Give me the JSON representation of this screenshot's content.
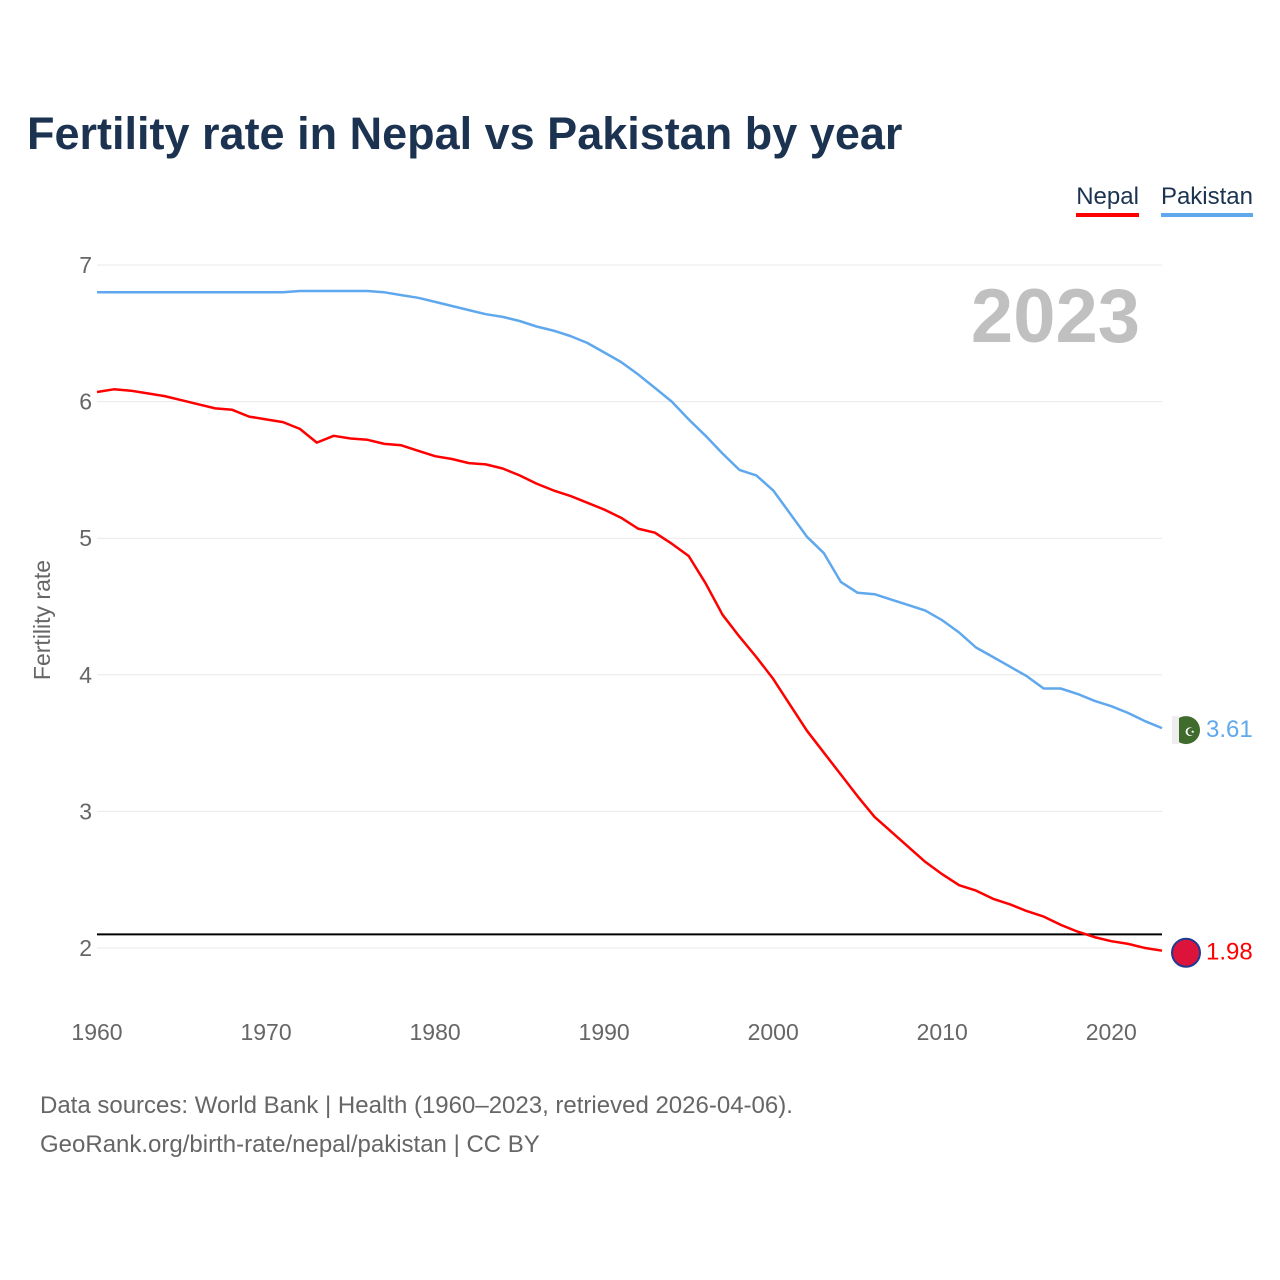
{
  "chart_data": {
    "type": "line",
    "title": "Fertility rate in Nepal vs Pakistan by year",
    "xlabel": "",
    "ylabel": "Fertility rate",
    "xlim": [
      1960,
      2023
    ],
    "ylim": [
      2,
      7
    ],
    "x_ticks": [
      1960,
      1970,
      1980,
      1990,
      2000,
      2010,
      2020
    ],
    "y_ticks": [
      2,
      3,
      4,
      5,
      6,
      7
    ],
    "grid": true,
    "legend_position": "top-right",
    "year_label": "2023",
    "reference_line": 2.1,
    "x": [
      1960,
      1961,
      1962,
      1963,
      1964,
      1965,
      1966,
      1967,
      1968,
      1969,
      1970,
      1971,
      1972,
      1973,
      1974,
      1975,
      1976,
      1977,
      1978,
      1979,
      1980,
      1981,
      1982,
      1983,
      1984,
      1985,
      1986,
      1987,
      1988,
      1989,
      1990,
      1991,
      1992,
      1993,
      1994,
      1995,
      1996,
      1997,
      1998,
      1999,
      2000,
      2001,
      2002,
      2003,
      2004,
      2005,
      2006,
      2007,
      2008,
      2009,
      2010,
      2011,
      2012,
      2013,
      2014,
      2015,
      2016,
      2017,
      2018,
      2019,
      2020,
      2021,
      2022,
      2023
    ],
    "series": [
      {
        "name": "Nepal",
        "color": "#ff0000",
        "end_label": "1.98",
        "values": [
          6.07,
          6.09,
          6.08,
          6.06,
          6.04,
          6.01,
          5.98,
          5.95,
          5.94,
          5.89,
          5.87,
          5.85,
          5.8,
          5.7,
          5.75,
          5.73,
          5.72,
          5.69,
          5.68,
          5.64,
          5.6,
          5.58,
          5.55,
          5.54,
          5.51,
          5.46,
          5.4,
          5.35,
          5.31,
          5.26,
          5.21,
          5.15,
          5.07,
          5.04,
          4.96,
          4.87,
          4.67,
          4.44,
          4.28,
          4.13,
          3.97,
          3.78,
          3.59,
          3.43,
          3.27,
          3.11,
          2.96,
          2.85,
          2.74,
          2.63,
          2.54,
          2.46,
          2.42,
          2.36,
          2.32,
          2.27,
          2.23,
          2.17,
          2.12,
          2.08,
          2.05,
          2.03,
          2.0,
          1.98
        ]
      },
      {
        "name": "Pakistan",
        "color": "#5fa8ee",
        "end_label": "3.61",
        "values": [
          6.8,
          6.8,
          6.8,
          6.8,
          6.8,
          6.8,
          6.8,
          6.8,
          6.8,
          6.8,
          6.8,
          6.8,
          6.81,
          6.81,
          6.81,
          6.81,
          6.81,
          6.8,
          6.78,
          6.76,
          6.73,
          6.7,
          6.67,
          6.64,
          6.62,
          6.59,
          6.55,
          6.52,
          6.48,
          6.43,
          6.36,
          6.29,
          6.2,
          6.1,
          6.0,
          5.87,
          5.75,
          5.62,
          5.5,
          5.46,
          5.35,
          5.18,
          5.01,
          4.89,
          4.68,
          4.6,
          4.59,
          4.55,
          4.51,
          4.47,
          4.4,
          4.31,
          4.2,
          4.13,
          4.06,
          3.99,
          3.9,
          3.9,
          3.86,
          3.81,
          3.77,
          3.72,
          3.66,
          3.61
        ]
      }
    ]
  },
  "footer": {
    "line1": "Data sources: World Bank | Health (1960–2023, retrieved 2026-04-06).",
    "line2": "GeoRank.org/birth-rate/nepal/pakistan | CC BY"
  }
}
